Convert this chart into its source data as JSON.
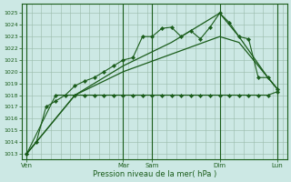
{
  "xlabel": "Pression niveau de la mer( hPa )",
  "bg_color": "#cce8e4",
  "grid_color": "#99bbaa",
  "line_color": "#1a5c1a",
  "ylim": [
    1012.5,
    1025.8
  ],
  "yticks": [
    1013,
    1014,
    1015,
    1016,
    1017,
    1018,
    1019,
    1020,
    1021,
    1022,
    1023,
    1024,
    1025
  ],
  "xtick_labels": [
    "Ven",
    "Mar",
    "Sam",
    "Dim",
    "Lun"
  ],
  "xtick_positions": [
    0,
    10,
    13,
    20,
    26
  ],
  "xlim": [
    -0.5,
    27
  ],
  "vlines": [
    0,
    10,
    13,
    20,
    26
  ],
  "s1_x": [
    0,
    1,
    2,
    3,
    4,
    5,
    6,
    7,
    8,
    9,
    10,
    11,
    12,
    13,
    14,
    15,
    16,
    17,
    18,
    19,
    20,
    21,
    22,
    23,
    24,
    25,
    26
  ],
  "s1_y": [
    1013,
    1014,
    1017,
    1017.5,
    1018,
    1018.8,
    1019.2,
    1019.5,
    1020,
    1020.5,
    1021,
    1021.2,
    1023,
    1023,
    1023.7,
    1023.8,
    1023,
    1023.5,
    1022.8,
    1023.8,
    1025,
    1024.2,
    1023,
    1022.8,
    1019.5,
    1019.5,
    1018.5
  ],
  "s2_x": [
    0,
    3,
    5,
    6,
    7,
    8,
    9,
    10,
    11,
    12,
    13,
    14,
    15,
    16,
    17,
    18,
    19,
    20,
    21,
    22,
    23,
    24,
    25,
    26
  ],
  "s2_y": [
    1013,
    1018,
    1018,
    1018,
    1018,
    1018,
    1018,
    1018,
    1018,
    1018,
    1018,
    1018,
    1018,
    1018,
    1018,
    1018,
    1018,
    1018,
    1018,
    1018,
    1018,
    1018,
    1018,
    1018.3
  ],
  "s3_x": [
    0,
    5,
    10,
    15,
    20,
    22,
    25,
    26
  ],
  "s3_y": [
    1013,
    1018,
    1020.5,
    1022.5,
    1025,
    1023,
    1019.5,
    1018.5
  ],
  "s4_x": [
    0,
    5,
    10,
    15,
    20,
    22,
    25,
    26
  ],
  "s4_y": [
    1013,
    1018,
    1020,
    1021.5,
    1023,
    1022.5,
    1019.5,
    1018.5
  ]
}
